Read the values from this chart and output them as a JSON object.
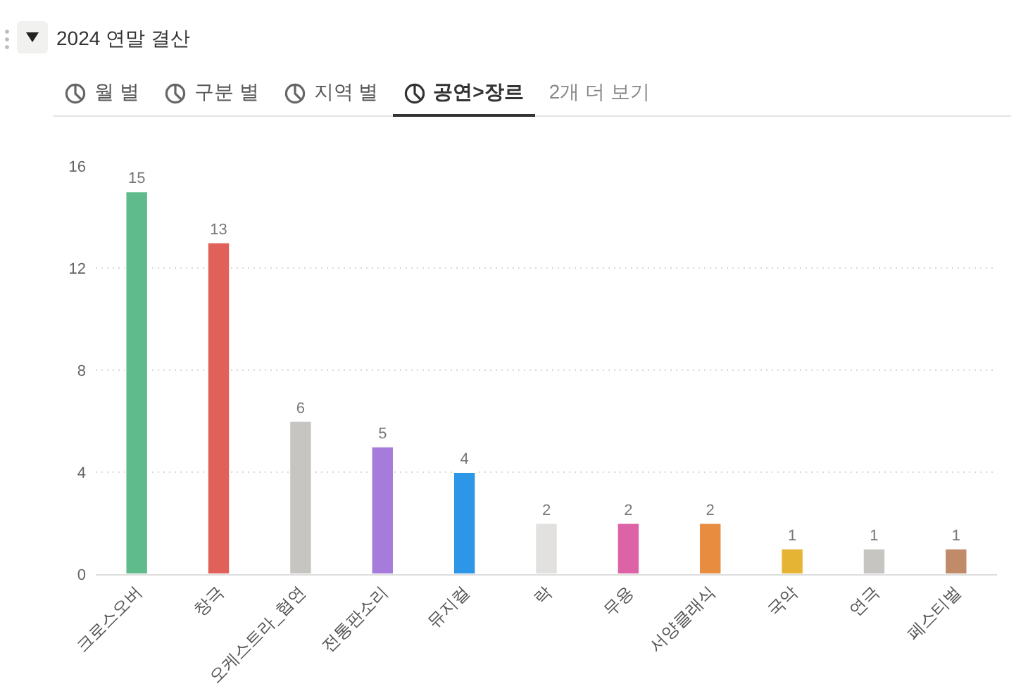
{
  "chart_data": {
    "type": "bar",
    "title": "2024 연말 결산",
    "subtitle": "공연>장르",
    "annotations": [
      "월 별",
      "구분 별",
      "지역 별",
      "2개 더 보기"
    ],
    "categories": [
      "크로스오버",
      "창극",
      "오케스트라_협연",
      "전통판소리",
      "뮤지컬",
      "락",
      "무용",
      "서양클래식",
      "국악",
      "연극",
      "페스티벌"
    ],
    "values": [
      15,
      13,
      6,
      5,
      4,
      2,
      2,
      2,
      1,
      1,
      1
    ],
    "colors": [
      "#5fbb8c",
      "#e0605a",
      "#c6c5c2",
      "#a67bdb",
      "#2d96e6",
      "#e2e1df",
      "#dc63a6",
      "#e88c40",
      "#e6b435",
      "#c6c5c2",
      "#bf8b69"
    ],
    "ylim": [
      0,
      16
    ],
    "yticks": [
      0,
      4,
      8,
      12,
      16
    ],
    "grid": "y",
    "data_labels": true
  }
}
